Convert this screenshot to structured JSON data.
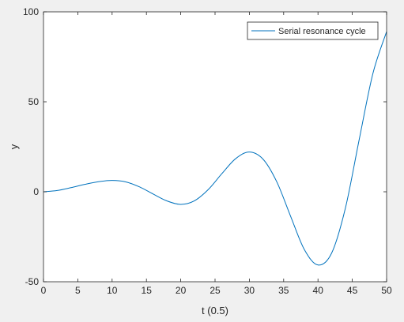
{
  "chart_data": {
    "type": "line",
    "xlabel": "t (0.5)",
    "ylabel": "y",
    "xlim": [
      0,
      50
    ],
    "ylim": [
      -50,
      100
    ],
    "xticks": [
      0,
      5,
      10,
      15,
      20,
      25,
      30,
      35,
      40,
      45,
      50
    ],
    "yticks": [
      -50,
      0,
      50,
      100
    ],
    "grid": false,
    "legend_position": "top-right",
    "series": [
      {
        "name": "Serial resonance cycle",
        "color": "#0072bd",
        "x": [
          0,
          2,
          4,
          6,
          8,
          10,
          12,
          14,
          16,
          18,
          20,
          22,
          24,
          26,
          28,
          30,
          32,
          34,
          36,
          38,
          40,
          42,
          44,
          46,
          48,
          50
        ],
        "y": [
          0,
          0.7,
          2.3,
          4.1,
          5.6,
          6.3,
          5.5,
          2.7,
          -1.3,
          -5.1,
          -7,
          -5,
          1.2,
          10.1,
          18.4,
          22.1,
          18.1,
          5.5,
          -13.5,
          -32,
          -40.7,
          -34,
          -9,
          28.9,
          65.7,
          89
        ]
      }
    ]
  }
}
